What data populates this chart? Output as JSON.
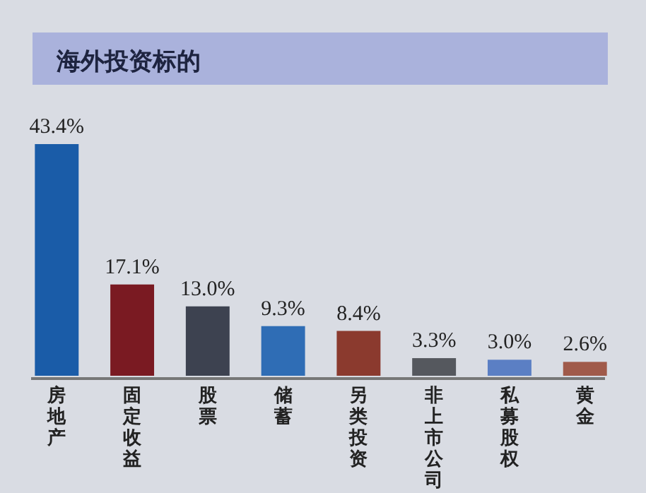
{
  "chart_data": {
    "type": "bar",
    "title": "海外投资标的",
    "categories": [
      "房地产",
      "固定收益",
      "股票",
      "储蓄",
      "另类投资",
      "非上市公司",
      "私募股权",
      "黄金"
    ],
    "values": [
      43.4,
      17.1,
      13.0,
      9.3,
      8.4,
      3.3,
      3.0,
      2.6
    ],
    "value_labels": [
      "43.4%",
      "17.1%",
      "13.0%",
      "9.3%",
      "8.4%",
      "3.3%",
      "3.0%",
      "2.6%"
    ],
    "colors": [
      "#1a5ca8",
      "#7a1a22",
      "#3d4250",
      "#2f6db5",
      "#8b3a2e",
      "#55585e",
      "#5b7fc4",
      "#a05a4a"
    ]
  }
}
